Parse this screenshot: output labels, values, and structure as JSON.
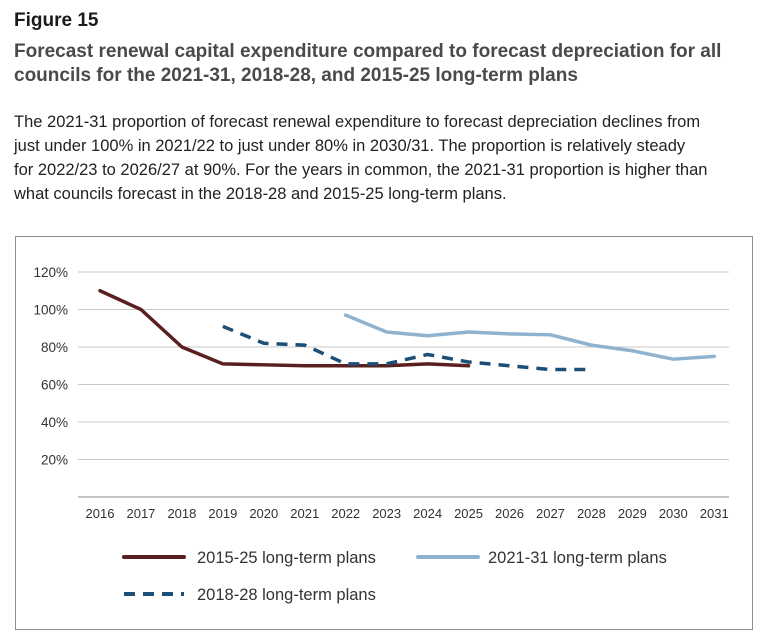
{
  "figure": {
    "label": "Figure 15",
    "title_line1": "Forecast renewal capital expenditure compared to forecast depreciation for all",
    "title_line2": "councils for the 2021-31, 2018-28, and 2015-25 long-term plans",
    "desc_line1": "The 2021-31 proportion of forecast renewal expenditure to forecast depreciation declines from",
    "desc_line2": "just under 100% in 2021/22 to just under 80% in 2030/31. The proportion is relatively steady",
    "desc_line3": "for 2022/23 to 2026/27 at 90%. For the years in common, the 2021-31 proportion is higher than",
    "desc_line4": "what councils forecast in the 2018-28 and 2015-25 long-term plans."
  },
  "chart_data": {
    "type": "line",
    "title": "",
    "xlabel": "",
    "ylabel": "",
    "categories": [
      "2016",
      "2017",
      "2018",
      "2019",
      "2020",
      "2021",
      "2022",
      "2023",
      "2024",
      "2025",
      "2026",
      "2027",
      "2028",
      "2029",
      "2030",
      "2031"
    ],
    "ylim": [
      0,
      120
    ],
    "yticks": [
      20,
      40,
      60,
      80,
      100,
      120
    ],
    "ytick_labels": [
      "20%",
      "40%",
      "60%",
      "80%",
      "100%",
      "120%"
    ],
    "grid": true,
    "legend": "bottom",
    "series": [
      {
        "name": "2015-25 long-term plans",
        "color": "#5a1f1f",
        "dash": "solid",
        "x": [
          "2016",
          "2017",
          "2018",
          "2019",
          "2020",
          "2021",
          "2022",
          "2023",
          "2024",
          "2025"
        ],
        "values": [
          110,
          100,
          80,
          71,
          70.5,
          70,
          70,
          70,
          71,
          70
        ]
      },
      {
        "name": "2021-31 long-term plans",
        "color": "#8fb3ce",
        "dash": "solid",
        "x": [
          "2022",
          "2023",
          "2024",
          "2025",
          "2026",
          "2027",
          "2028",
          "2029",
          "2030",
          "2031"
        ],
        "values": [
          97,
          88,
          86,
          88,
          87,
          86.5,
          81,
          78,
          73.5,
          75
        ]
      },
      {
        "name": "2018-28 long-term plans",
        "color": "#1c4f78",
        "dash": "dashed",
        "x": [
          "2019",
          "2020",
          "2021",
          "2022",
          "2023",
          "2024",
          "2025",
          "2026",
          "2027",
          "2028"
        ],
        "values": [
          91,
          82,
          81,
          71,
          71,
          76,
          72,
          70,
          68,
          68
        ]
      }
    ]
  }
}
